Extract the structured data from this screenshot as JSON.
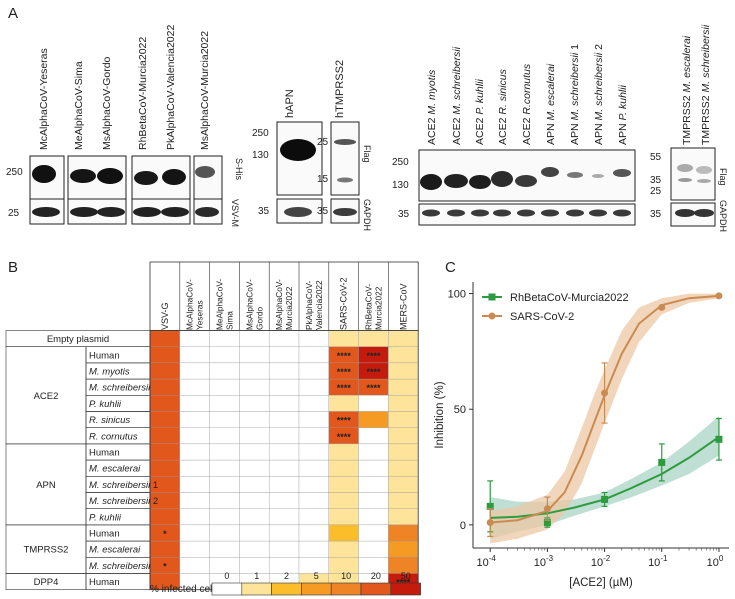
{
  "panels": {
    "a": "A",
    "b": "B",
    "c": "C"
  },
  "panel_a": {
    "spike_blot": {
      "lanes": [
        "McAlphaCoV-Yeseras",
        "MeAlphaCoV-Sima",
        "MsAlphaCoV-Gordo",
        "RhBetaCoV-Murcia2022",
        "PkAlphaCoV-Valencia2022",
        "MsAlphaCoV-Murcia2022"
      ],
      "markers_top": [
        "250"
      ],
      "markers_bottom": [
        "25"
      ],
      "label_top": "S-His",
      "label_bottom": "VSV-M"
    },
    "hapn_blot": {
      "title": "hAPN",
      "markers_top": [
        "250",
        "130"
      ],
      "markers_bottom": [
        "35"
      ]
    },
    "htmprss2_blot": {
      "title": "hTMPRSS2",
      "markers_top": [
        "25",
        "15"
      ],
      "markers_bottom": [
        "35"
      ],
      "label_top": "Flag",
      "label_bottom": "GAPDH"
    },
    "receptor_blot": {
      "lanes": [
        {
          "prefix": "ACE2",
          "species": "M. myotis",
          "suffix": ""
        },
        {
          "prefix": "ACE2",
          "species": "M. schreibersii",
          "suffix": ""
        },
        {
          "prefix": "ACE2",
          "species": "P. kuhlii",
          "suffix": ""
        },
        {
          "prefix": "ACE2",
          "species": "R. sinicus",
          "suffix": ""
        },
        {
          "prefix": "ACE2",
          "species": "R.cornutus",
          "suffix": ""
        },
        {
          "prefix": "APN",
          "species": "M. escalerai",
          "suffix": ""
        },
        {
          "prefix": "APN",
          "species": "M. schreibersii",
          "suffix": " 1"
        },
        {
          "prefix": "APN",
          "species": "M. schreibersii",
          "suffix": " 2"
        },
        {
          "prefix": "APN",
          "species": "P. kuhlii",
          "suffix": ""
        }
      ],
      "markers_top": [
        "250",
        "130"
      ],
      "markers_bottom": [
        "35"
      ]
    },
    "tmprss2_bat_blot": {
      "lanes": [
        {
          "prefix": "TMPRSS2",
          "species": "M. escalerai"
        },
        {
          "prefix": "TMPRSS2",
          "species": "M. schreibersii"
        }
      ],
      "markers_top": [
        "55",
        "35",
        "25"
      ],
      "markers_bottom": [
        "35"
      ],
      "label_top": "Flag",
      "label_bottom": "GAPDH"
    }
  },
  "panel_b": {
    "columns": [
      "VSV-G",
      "McAlphaCoV-\nYeseras",
      "MeAlphaCoV-\nSima",
      "MsAlphaCoV-\nGordo",
      "MsAlphaCoV-\nMurcia2022",
      "PkAlphaCoV-\nValencia2022",
      "SARS-CoV-2",
      "RhBetaCoV-\nMurcia2022",
      "MERS-CoV"
    ],
    "groups": [
      {
        "name": "Empty plasmid",
        "rows": [
          {
            "label": "",
            "italic": false
          }
        ]
      },
      {
        "name": "ACE2",
        "rows": [
          {
            "label": "Human",
            "italic": false
          },
          {
            "label": "M. myotis",
            "italic": true
          },
          {
            "label": "M. schreibersii",
            "italic": true
          },
          {
            "label": "P. kuhlii",
            "italic": true
          },
          {
            "label": "R. sinicus",
            "italic": true
          },
          {
            "label": "R. cornutus",
            "italic": true
          }
        ]
      },
      {
        "name": "APN",
        "rows": [
          {
            "label": "Human",
            "italic": false
          },
          {
            "label": "M. escalerai",
            "italic": true
          },
          {
            "label": "M. schreibersii 1",
            "italic": true
          },
          {
            "label": "M. schreibersii 2",
            "italic": true
          },
          {
            "label": "P. kuhlii",
            "italic": true
          }
        ]
      },
      {
        "name": "TMPRSS2",
        "rows": [
          {
            "label": "Human",
            "italic": false
          },
          {
            "label": "M. escalerai",
            "italic": true
          },
          {
            "label": "M. schreibersii",
            "italic": true
          }
        ]
      },
      {
        "name": "DPP4",
        "rows": [
          {
            "label": "Human",
            "italic": false
          }
        ]
      }
    ],
    "values": [
      [
        20,
        0,
        0,
        0,
        0,
        0,
        1,
        1,
        1
      ],
      [
        20,
        0,
        0,
        0,
        0,
        0,
        20,
        50,
        1
      ],
      [
        20,
        0,
        0,
        0,
        0,
        0,
        20,
        50,
        1
      ],
      [
        20,
        0,
        0,
        0,
        0,
        0,
        20,
        20,
        1
      ],
      [
        20,
        0,
        0,
        0,
        0,
        0,
        1,
        0,
        1
      ],
      [
        20,
        0,
        0,
        0,
        0,
        0,
        20,
        5,
        1
      ],
      [
        20,
        0,
        0,
        0,
        0,
        0,
        20,
        0,
        1
      ],
      [
        20,
        0,
        0,
        0,
        0,
        0,
        1,
        0,
        1
      ],
      [
        20,
        0,
        0,
        0,
        0,
        0,
        1,
        0,
        1
      ],
      [
        20,
        0,
        0,
        0,
        0,
        0,
        1,
        0,
        1
      ],
      [
        20,
        0,
        0,
        0,
        0,
        0,
        1,
        0,
        1
      ],
      [
        20,
        0,
        0,
        0,
        0,
        0,
        1,
        0,
        1
      ],
      [
        20,
        0,
        0,
        0,
        0,
        0,
        2,
        0,
        10
      ],
      [
        20,
        0,
        0,
        0,
        0,
        0,
        1,
        0,
        5
      ],
      [
        20,
        0,
        0,
        0,
        0,
        0,
        1,
        0,
        10
      ],
      [
        20,
        0,
        0,
        0,
        0,
        1,
        1,
        0,
        50
      ]
    ],
    "stars": [
      [
        "",
        "",
        "",
        "",
        "",
        "",
        "",
        "",
        ""
      ],
      [
        "",
        "",
        "",
        "",
        "",
        "",
        "****",
        "****",
        ""
      ],
      [
        "",
        "",
        "",
        "",
        "",
        "",
        "****",
        "****",
        ""
      ],
      [
        "",
        "",
        "",
        "",
        "",
        "",
        "****",
        "****",
        ""
      ],
      [
        "",
        "",
        "",
        "",
        "",
        "",
        "",
        "",
        ""
      ],
      [
        "",
        "",
        "",
        "",
        "",
        "",
        "****",
        "",
        ""
      ],
      [
        "",
        "",
        "",
        "",
        "",
        "",
        "****",
        "",
        ""
      ],
      [
        "",
        "",
        "",
        "",
        "",
        "",
        "",
        "",
        ""
      ],
      [
        "",
        "",
        "",
        "",
        "",
        "",
        "",
        "",
        ""
      ],
      [
        "",
        "",
        "",
        "",
        "",
        "",
        "",
        "",
        ""
      ],
      [
        "",
        "",
        "",
        "",
        "",
        "",
        "",
        "",
        ""
      ],
      [
        "",
        "",
        "",
        "",
        "",
        "",
        "",
        "",
        ""
      ],
      [
        "*",
        "",
        "",
        "",
        "",
        "",
        "",
        "",
        ""
      ],
      [
        "",
        "",
        "",
        "",
        "",
        "",
        "",
        "",
        ""
      ],
      [
        "*",
        "",
        "",
        "",
        "",
        "",
        "",
        "",
        ""
      ],
      [
        "",
        "",
        "",
        "",
        "",
        "",
        "",
        "",
        "****"
      ]
    ],
    "legend": {
      "label": "% infected cells:",
      "ticks": [
        "0",
        "1",
        "2",
        "5",
        "10",
        "20",
        "50"
      ],
      "colors": [
        "#ffffff",
        "#fde49a",
        "#fbbd2a",
        "#f59a22",
        "#ee8426",
        "#e2571b",
        "#c51b0d"
      ]
    }
  },
  "chart_data": {
    "type": "scatter",
    "title": "",
    "xlabel": "[ACE2] (µM)",
    "ylabel": "Inhibition (%)",
    "x_scale": "log",
    "xlim": [
      5e-05,
      1.5
    ],
    "ylim": [
      -10,
      105
    ],
    "x_ticks": [
      {
        "value": 0.0001,
        "base": "10",
        "exp": "-4"
      },
      {
        "value": 0.001,
        "base": "10",
        "exp": "-3"
      },
      {
        "value": 0.01,
        "base": "10",
        "exp": "-2"
      },
      {
        "value": 0.1,
        "base": "10",
        "exp": "-1"
      },
      {
        "value": 1,
        "base": "10",
        "exp": "0"
      }
    ],
    "y_ticks": [
      0,
      50,
      100
    ],
    "legend_position": "top-left",
    "series": [
      {
        "name": "RhBetaCoV-Murcia2022",
        "color": "#2e9b3f",
        "band_color": "#a9d3c6",
        "marker": "square",
        "x": [
          0.0001,
          0.001,
          0.01,
          0.1,
          1
        ],
        "y": [
          8,
          1,
          11,
          27,
          37
        ],
        "err": [
          11,
          2,
          3,
          8,
          9
        ],
        "fit_x": [
          0.0001,
          0.0003,
          0.001,
          0.003,
          0.01,
          0.03,
          0.1,
          0.3,
          1
        ],
        "fit_y": [
          3,
          3.5,
          5,
          7.5,
          11,
          16,
          22,
          29,
          38
        ],
        "band_lo": [
          -6,
          -3,
          0,
          4,
          8,
          12,
          17,
          22,
          30
        ],
        "band_hi": [
          12,
          10,
          10,
          11,
          14,
          20,
          27,
          36,
          47
        ]
      },
      {
        "name": "SARS-CoV-2",
        "color": "#c98b52",
        "band_color": "#ecc8a6",
        "marker": "circle",
        "x": [
          0.0001,
          0.001,
          0.01,
          0.1,
          1
        ],
        "y": [
          1,
          7,
          57,
          94,
          99
        ],
        "err": [
          6,
          5,
          13,
          0,
          0
        ],
        "fit_x": [
          0.0001,
          0.0003,
          0.001,
          0.002,
          0.004,
          0.007,
          0.01,
          0.02,
          0.04,
          0.1,
          0.3,
          1
        ],
        "fit_y": [
          1,
          2,
          6,
          14,
          30,
          46,
          56,
          74,
          87,
          95,
          98,
          99
        ],
        "band_lo": [
          -8,
          -6,
          -2,
          5,
          18,
          34,
          44,
          63,
          79,
          91,
          96,
          98
        ],
        "band_hi": [
          6,
          8,
          13,
          23,
          42,
          58,
          67,
          84,
          94,
          98,
          100,
          100
        ]
      }
    ]
  }
}
